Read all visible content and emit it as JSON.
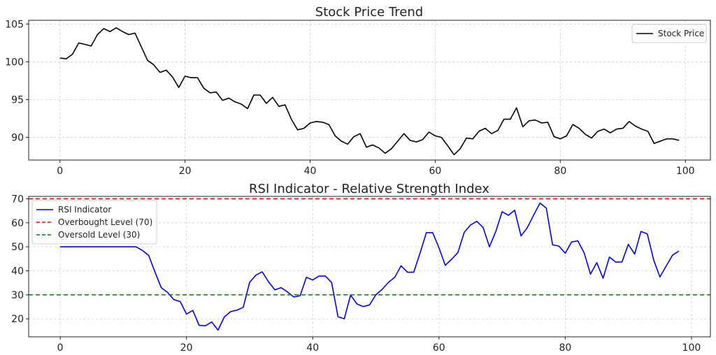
{
  "chart_data": [
    {
      "type": "line",
      "title": "Stock Price Trend",
      "xlabel": "",
      "ylabel": "",
      "xlim": [
        -5,
        104
      ],
      "ylim": [
        87,
        105.5
      ],
      "xticks": [
        0,
        20,
        40,
        60,
        80,
        100
      ],
      "xtick_labels": [
        "0",
        "20",
        "40",
        "60",
        "80",
        "100"
      ],
      "yticks": [
        90,
        95,
        100,
        105
      ],
      "ytick_labels": [
        "90",
        "95",
        "100",
        "105"
      ],
      "grid": true,
      "legend_position": "top-right",
      "series": [
        {
          "name": "Stock Price",
          "color": "#000000",
          "style": "solid",
          "x": [
            0,
            1,
            2,
            3,
            4,
            5,
            6,
            7,
            8,
            9,
            10,
            11,
            12,
            13,
            14,
            15,
            16,
            17,
            18,
            19,
            20,
            21,
            22,
            23,
            24,
            25,
            26,
            27,
            28,
            29,
            30,
            31,
            32,
            33,
            34,
            35,
            36,
            37,
            38,
            39,
            40,
            41,
            42,
            43,
            44,
            45,
            46,
            47,
            48,
            49,
            50,
            51,
            52,
            53,
            54,
            55,
            56,
            57,
            58,
            59,
            60,
            61,
            62,
            63,
            64,
            65,
            66,
            67,
            68,
            69,
            70,
            71,
            72,
            73,
            74,
            75,
            76,
            77,
            78,
            79,
            80,
            81,
            82,
            83,
            84,
            85,
            86,
            87,
            88,
            89,
            90,
            91,
            92,
            93,
            94,
            95,
            96,
            97,
            98,
            99
          ],
          "values": [
            100.5,
            100.4,
            101.0,
            102.5,
            102.3,
            102.1,
            103.6,
            104.4,
            104.0,
            104.5,
            104.0,
            103.6,
            103.8,
            102.0,
            100.2,
            99.6,
            98.6,
            98.9,
            98.0,
            96.6,
            98.1,
            97.9,
            97.9,
            96.5,
            95.9,
            96.0,
            94.9,
            95.2,
            94.7,
            94.4,
            93.8,
            95.6,
            95.6,
            94.5,
            95.3,
            94.1,
            94.3,
            92.4,
            91.0,
            91.2,
            91.9,
            92.1,
            92.0,
            91.7,
            90.2,
            89.5,
            89.1,
            90.1,
            90.5,
            88.7,
            89.0,
            88.6,
            87.9,
            88.5,
            89.5,
            90.5,
            89.6,
            89.4,
            89.7,
            90.7,
            90.2,
            90.0,
            88.9,
            87.7,
            88.5,
            89.9,
            89.8,
            90.8,
            91.2,
            90.5,
            90.9,
            92.4,
            92.4,
            93.9,
            91.4,
            92.2,
            92.3,
            91.9,
            92.0,
            90.1,
            89.8,
            90.2,
            91.7,
            91.2,
            90.4,
            89.9,
            90.8,
            91.1,
            90.6,
            91.1,
            91.2,
            92.1,
            91.5,
            91.1,
            90.8,
            89.2,
            89.5,
            89.8,
            89.8,
            89.6
          ]
        }
      ]
    },
    {
      "type": "line",
      "title": "RSI Indicator - Relative Strength Index",
      "xlabel": "",
      "ylabel": "",
      "xlim": [
        -5,
        103
      ],
      "ylim": [
        12.5,
        71
      ],
      "xticks": [
        0,
        20,
        40,
        60,
        80,
        100
      ],
      "xtick_labels": [
        "0",
        "20",
        "40",
        "60",
        "80",
        "100"
      ],
      "yticks": [
        20,
        30,
        40,
        50,
        60,
        70
      ],
      "ytick_labels": [
        "20",
        "30",
        "40",
        "50",
        "60",
        "70"
      ],
      "grid": true,
      "legend_position": "top-left",
      "series": [
        {
          "name": "RSI Indicator",
          "color": "#0000ee",
          "style": "solid",
          "x": [
            0,
            1,
            2,
            3,
            4,
            5,
            6,
            7,
            8,
            9,
            10,
            11,
            12,
            13,
            14,
            15,
            16,
            17,
            18,
            19,
            20,
            21,
            22,
            23,
            24,
            25,
            26,
            27,
            28,
            29,
            30,
            31,
            32,
            33,
            34,
            35,
            36,
            37,
            38,
            39,
            40,
            41,
            42,
            43,
            44,
            45,
            46,
            47,
            48,
            49,
            50,
            51,
            52,
            53,
            54,
            55,
            56,
            57,
            58,
            59,
            60,
            61,
            62,
            63,
            64,
            65,
            66,
            67,
            68,
            69,
            70,
            71,
            72,
            73,
            74,
            75,
            76,
            77,
            78,
            79,
            80,
            81,
            82,
            83,
            84,
            85,
            86,
            87,
            88,
            89,
            90,
            91,
            92,
            93,
            94,
            95,
            96,
            97,
            98
          ],
          "values": [
            50,
            50,
            50,
            50,
            50,
            50,
            50,
            50,
            50,
            50,
            50,
            50,
            50,
            48.5,
            46.5,
            39.5,
            33,
            31,
            28,
            27.2,
            22,
            23.5,
            17.3,
            17.1,
            18.7,
            15.3,
            20.8,
            23,
            23.6,
            24.8,
            35.2,
            38.2,
            39.6,
            35.4,
            32.1,
            33,
            31.2,
            29.1,
            29.6,
            37.3,
            36.2,
            37.8,
            37.8,
            35.1,
            20.9,
            20,
            29.9,
            26.2,
            25.1,
            25.8,
            30,
            32.3,
            35.2,
            37.3,
            42.1,
            39.4,
            39.4,
            47.3,
            55.9,
            55.9,
            49.6,
            42.3,
            44.8,
            47.6,
            56,
            59.1,
            60.6,
            58,
            50,
            56.4,
            64.6,
            63.1,
            65.2,
            54.5,
            58,
            63.2,
            68.2,
            66.1,
            50.8,
            50.3,
            47.3,
            52,
            52.5,
            47.5,
            38.6,
            43.4,
            36.9,
            45.7,
            43.6,
            43.7,
            51,
            47,
            56.4,
            55.4,
            44.6,
            37.4,
            42,
            46.5,
            48.2
          ]
        },
        {
          "name": "Overbought Level (70)",
          "color": "#ff0000",
          "style": "dashed",
          "hline": 70
        },
        {
          "name": "Oversold Level (30)",
          "color": "#008000",
          "style": "dashed",
          "hline": 30
        }
      ]
    }
  ]
}
